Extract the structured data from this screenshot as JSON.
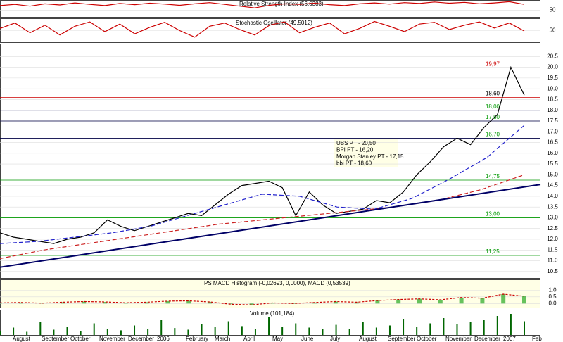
{
  "chart_data": {
    "type": "stock",
    "rsi": {
      "title": "Relative Strength Index (56,6383)",
      "color": "#cc0000",
      "ylim": [
        30,
        80
      ],
      "yticks": [
        50
      ],
      "values": [
        66,
        70,
        64,
        72,
        68,
        75,
        70,
        66,
        73,
        69,
        74,
        71,
        67,
        72,
        76,
        70,
        64,
        58,
        67,
        72,
        70,
        74,
        69,
        66,
        72,
        75,
        71,
        76,
        73,
        78,
        74,
        77,
        72,
        75,
        79,
        70
      ]
    },
    "stochastic": {
      "title": "Stochastic Oscillator (49,5012)",
      "color": "#cc0000",
      "ylim": [
        0,
        100
      ],
      "yticks": [
        50
      ],
      "values": [
        60,
        85,
        40,
        75,
        30,
        70,
        90,
        45,
        80,
        35,
        65,
        88,
        50,
        20,
        70,
        85,
        55,
        30,
        75,
        90,
        40,
        65,
        85,
        35,
        60,
        92,
        70,
        45,
        80,
        88,
        55,
        75,
        90,
        62,
        85,
        48
      ]
    },
    "price": {
      "ylim": [
        10.2,
        21.1
      ],
      "yticks": [
        {
          "value": 10.5,
          "label": "10.5"
        },
        {
          "value": 11,
          "label": "11.0"
        },
        11.5,
        {
          "value": 12,
          "label": "12.0"
        },
        12.5,
        {
          "value": 13,
          "label": "13.0"
        },
        13.5,
        {
          "value": 14,
          "label": "14.0"
        },
        14.5,
        {
          "value": 15,
          "label": "15.0"
        },
        15.5,
        {
          "value": 16,
          "label": "16.0"
        },
        16.5,
        {
          "value": 17,
          "label": "17.0"
        },
        17.5,
        {
          "value": 18,
          "label": "18.0"
        },
        18.5,
        {
          "value": 19,
          "label": "19.0"
        },
        19.5,
        {
          "value": 20,
          "label": "20.0"
        },
        20.5
      ],
      "series": [
        {
          "color": "#000000",
          "values": [
            12.3,
            12.1,
            12.0,
            11.9,
            11.8,
            12.0,
            12.1,
            12.3,
            12.9,
            12.6,
            12.4,
            12.6,
            12.8,
            13.0,
            13.2,
            13.1,
            13.6,
            14.1,
            14.5,
            14.6,
            14.7,
            14.4,
            13.1,
            14.2,
            13.6,
            13.2,
            13.3,
            13.4,
            13.8,
            13.7,
            14.2,
            15.0,
            15.6,
            16.3,
            16.7,
            16.4,
            17.2,
            17.8,
            20.0,
            18.7
          ]
        },
        {
          "color": "#2222cc",
          "values": [
            11.8,
            11.9,
            12.1,
            12.3,
            12.6,
            13.1,
            13.6,
            14.1,
            14.0,
            13.5,
            13.4,
            13.9,
            14.8,
            15.8,
            17.3
          ]
        },
        {
          "color": "#cc2222",
          "values": [
            11.1,
            11.5,
            11.8,
            12.1,
            12.4,
            12.7,
            12.9,
            13.1,
            13.3,
            13.5,
            13.8,
            14.3,
            15.0
          ]
        },
        {
          "color": "#000066",
          "values": [
            10.7,
            14.55
          ]
        }
      ],
      "levels": [
        {
          "value": 19.97,
          "label": "19,97",
          "color": "#cc0000",
          "label_color": "#cc0000"
        },
        {
          "value": 18.6,
          "label": "18,60",
          "color": "#cc0000",
          "label_color": "#000000"
        },
        {
          "value": 18,
          "label": "18,00",
          "color": "#000044",
          "label_color": "#009900"
        },
        {
          "value": 17.5,
          "label": "17,50",
          "color": "#000044",
          "label_color": "#009900"
        },
        {
          "value": 16.7,
          "label": "16,70",
          "color": "#000044",
          "label_color": "#009900"
        },
        {
          "value": 14.75,
          "label": "14,75",
          "color": "#009900",
          "label_color": "#009900"
        },
        {
          "value": 13,
          "label": "13,00",
          "color": "#009900",
          "label_color": "#009900"
        },
        {
          "value": 11.25,
          "label": "11,25",
          "color": "#009900",
          "label_color": "#009900"
        }
      ],
      "annotation": [
        "UBS PT - 20,50",
        "BPI PT - 16,20",
        "Morgan Stanley PT - 17,15",
        "bbi PT - 18,60"
      ]
    },
    "macd": {
      "title": "PS MACD Histogram (-0,02693, 0,0000), MACD (0,53539)",
      "color": "#cc0000",
      "ylim": [
        -0.35,
        1.8
      ],
      "yticks": [
        {
          "value": 1,
          "label": "1.0"
        },
        0.5,
        {
          "value": 0,
          "label": "0.0"
        }
      ],
      "values": [
        0.05,
        0.08,
        0.03,
        0.1,
        0.15,
        0.12,
        0.06,
        0.1,
        0.18,
        0.2,
        0.12,
        -0.05,
        -0.1,
        0.05,
        0.0,
        0.08,
        0.15,
        0.1,
        0.22,
        0.3,
        0.35,
        0.28,
        0.45,
        0.4,
        0.7,
        0.54
      ]
    },
    "volume": {
      "title": "Volume (101,184)",
      "color": "#006600",
      "values": [
        20,
        35,
        15,
        60,
        25,
        40,
        18,
        55,
        30,
        22,
        45,
        28,
        70,
        33,
        25,
        50,
        38,
        65,
        42,
        30,
        85,
        40,
        55,
        35,
        28,
        48,
        30,
        60,
        35,
        45,
        75,
        40,
        55,
        80,
        50,
        60,
        70,
        90,
        100,
        65
      ]
    },
    "categories": [
      "August",
      "September",
      "October",
      "November",
      "December",
      "2006",
      "February",
      "March",
      "April",
      "May",
      "June",
      "July",
      "August",
      "September",
      "October",
      "November",
      "December",
      "2007",
      "Feb"
    ]
  }
}
